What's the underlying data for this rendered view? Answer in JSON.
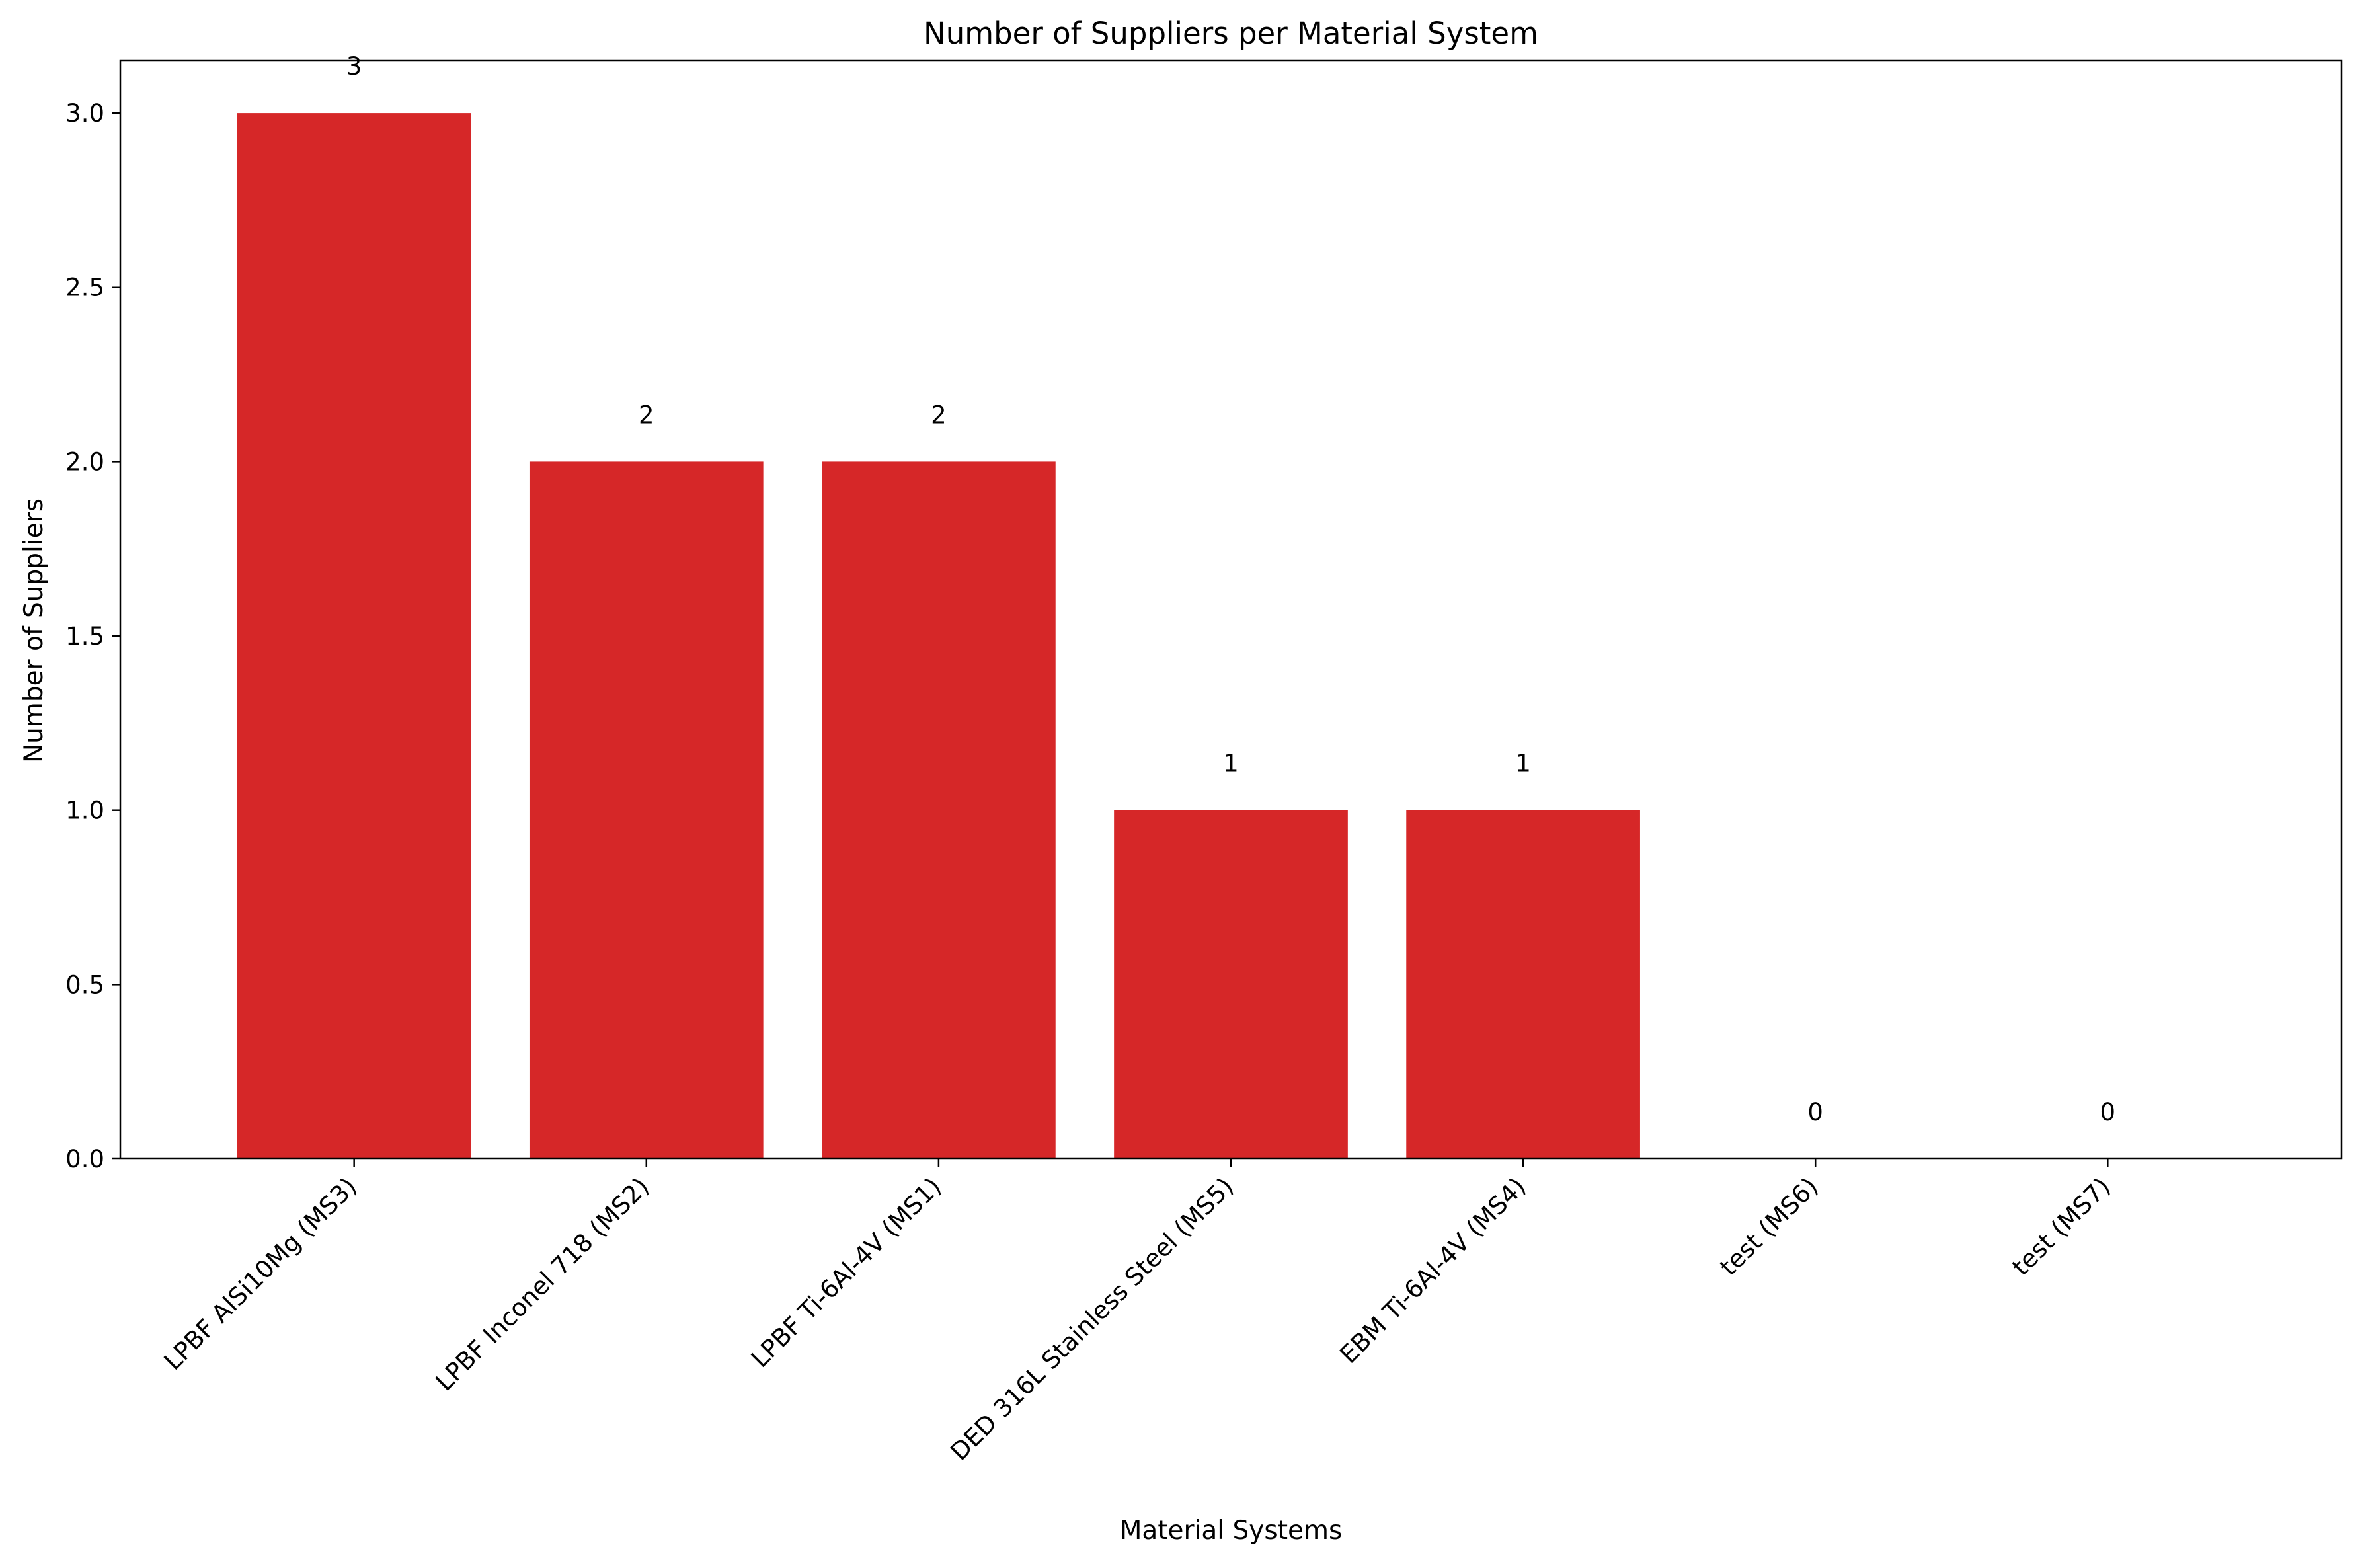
{
  "chart_data": {
    "type": "bar",
    "title": "Number of Suppliers per Material System",
    "xlabel": "Material Systems",
    "ylabel": "Number of Suppliers",
    "categories": [
      "LPBF AlSi10Mg (MS3)",
      "LPBF Inconel 718 (MS2)",
      "LPBF Ti-6Al-4V (MS1)",
      "DED 316L Stainless Steel (MS5)",
      "EBM Ti-6Al-4V (MS4)",
      "test (MS6)",
      "test (MS7)"
    ],
    "values": [
      3,
      2,
      2,
      1,
      1,
      0,
      0
    ],
    "data_labels": [
      "3",
      "2",
      "2",
      "1",
      "1",
      "0",
      "0"
    ],
    "ylim": [
      0,
      3.15
    ],
    "yticks": [
      0,
      0.5,
      1.0,
      1.5,
      2.0,
      2.5,
      3.0
    ],
    "ytick_labels": [
      "0.0",
      "0.5",
      "1.0",
      "1.5",
      "2.0",
      "2.5",
      "3.0"
    ],
    "bar_color": "#d62728",
    "grid": false,
    "legend": "none"
  }
}
